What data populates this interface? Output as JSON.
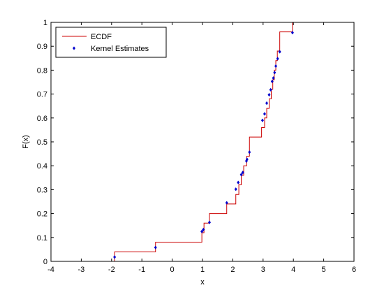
{
  "chart_data": {
    "type": "line",
    "title": "",
    "xlabel": "x",
    "ylabel": "F(x)",
    "xlim": [
      -4,
      6
    ],
    "ylim": [
      0,
      1
    ],
    "xticks": [
      -4,
      -3,
      -2,
      -1,
      0,
      1,
      2,
      3,
      4,
      5,
      6
    ],
    "yticks": [
      0,
      0.1,
      0.2,
      0.3,
      0.4,
      0.5,
      0.6,
      0.7,
      0.8,
      0.9,
      1
    ],
    "grid": false,
    "legend_position": "top-left",
    "series": [
      {
        "name": "ECDF",
        "kind": "step",
        "color": "#cc0000",
        "x": [
          -1.9,
          -0.55,
          0.98,
          1.05,
          1.23,
          1.8,
          2.1,
          2.2,
          2.28,
          2.36,
          2.46,
          2.55,
          2.95,
          3.05,
          3.12,
          3.2,
          3.27,
          3.32,
          3.37,
          3.42,
          3.47,
          3.55,
          3.97
        ],
        "y": [
          0.04,
          0.08,
          0.12,
          0.16,
          0.2,
          0.24,
          0.28,
          0.32,
          0.36,
          0.4,
          0.44,
          0.52,
          0.56,
          0.6,
          0.64,
          0.68,
          0.72,
          0.76,
          0.8,
          0.84,
          0.88,
          0.96,
          1.0
        ]
      },
      {
        "name": "Kernel Estimates",
        "kind": "points",
        "color": "#0000cc",
        "x": [
          -1.9,
          -0.55,
          0.98,
          1.03,
          1.23,
          1.8,
          2.1,
          2.18,
          2.28,
          2.33,
          2.45,
          2.47,
          2.55,
          2.98,
          3.05,
          3.12,
          3.2,
          3.25,
          3.3,
          3.34,
          3.38,
          3.42,
          3.48,
          3.55,
          3.97
        ],
        "y": [
          0.018,
          0.058,
          0.125,
          0.133,
          0.163,
          0.245,
          0.302,
          0.33,
          0.363,
          0.372,
          0.42,
          0.427,
          0.457,
          0.59,
          0.617,
          0.662,
          0.697,
          0.718,
          0.753,
          0.767,
          0.79,
          0.817,
          0.848,
          0.877,
          0.957
        ]
      }
    ]
  }
}
